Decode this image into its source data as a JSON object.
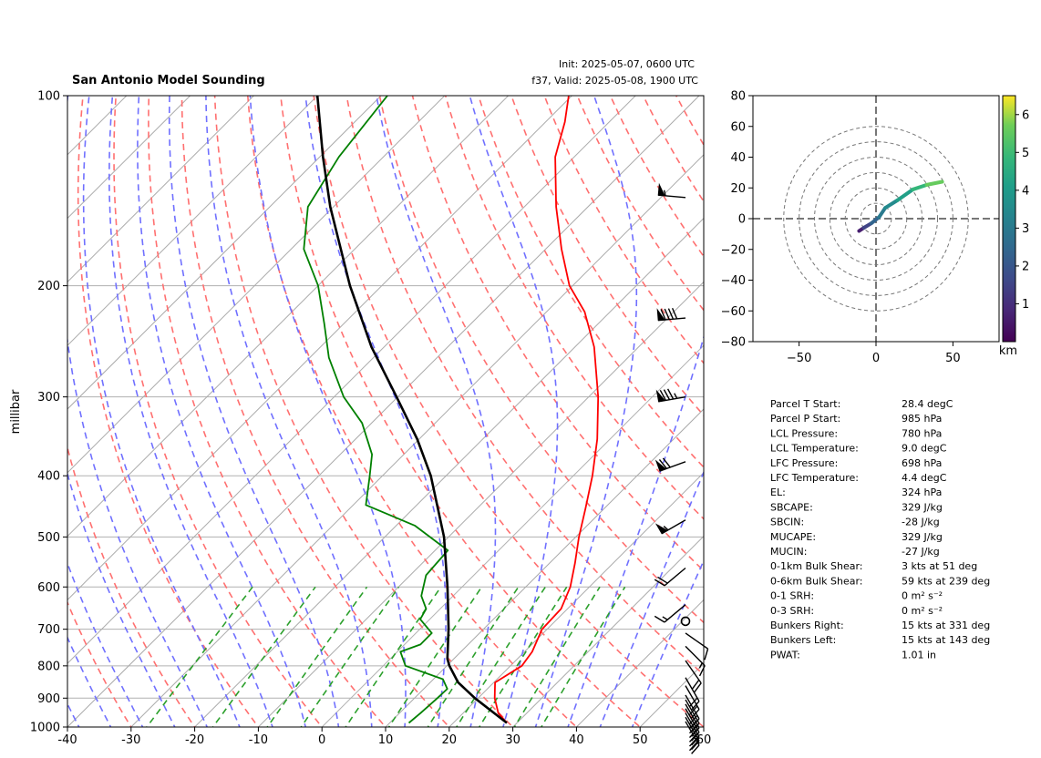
{
  "header": {
    "title": "San Antonio Model Sounding",
    "init": "Init: 2025-05-07, 0600 UTC",
    "valid": "f37, Valid: 2025-05-08, 1900 UTC"
  },
  "chart_data": [
    {
      "type": "skew-t",
      "xlim": [
        -40,
        60
      ],
      "ylim": [
        1000,
        100
      ],
      "ylabel": "millibar",
      "x_ticks": [
        "-40",
        "-30",
        "-20",
        "-10",
        "0",
        "10",
        "20",
        "30",
        "40",
        "50",
        "60"
      ],
      "y_ticks": [
        "1000",
        "900",
        "800",
        "700",
        "600",
        "500",
        "400",
        "300",
        "200",
        "100"
      ],
      "log_scale_y": true,
      "grid": true,
      "colors": {
        "temperature": "#ff0000",
        "dewpoint": "#008000",
        "parcel": "#000000",
        "dry_adiabats": "#ff7070",
        "moist_adiabats": "#7070ff",
        "mixing_ratio": "#2ca02c",
        "isotherm_0c": "#8844cc",
        "isotherms": "#aaaaaa"
      },
      "temperature": [
        {
          "p": 985,
          "t": 28.4
        },
        {
          "p": 950,
          "t": 25.5
        },
        {
          "p": 900,
          "t": 22.6
        },
        {
          "p": 850,
          "t": 20.2
        },
        {
          "p": 800,
          "t": 21.8
        },
        {
          "p": 760,
          "t": 21.2
        },
        {
          "p": 700,
          "t": 19.2
        },
        {
          "p": 650,
          "t": 19.0
        },
        {
          "p": 600,
          "t": 17.0
        },
        {
          "p": 550,
          "t": 14.0
        },
        {
          "p": 500,
          "t": 10.5
        },
        {
          "p": 450,
          "t": 7.0
        },
        {
          "p": 400,
          "t": 3.0
        },
        {
          "p": 350,
          "t": -2.0
        },
        {
          "p": 300,
          "t": -8.5
        },
        {
          "p": 250,
          "t": -17.0
        },
        {
          "p": 220,
          "t": -24.0
        },
        {
          "p": 200,
          "t": -30.5
        },
        {
          "p": 175,
          "t": -37.5
        },
        {
          "p": 150,
          "t": -45.0
        },
        {
          "p": 125,
          "t": -53.0
        },
        {
          "p": 110,
          "t": -57.0
        },
        {
          "p": 100,
          "t": -60.5
        }
      ],
      "dewpoint": [
        {
          "p": 985,
          "t": 13.0
        },
        {
          "p": 950,
          "t": 13.3
        },
        {
          "p": 900,
          "t": 13.6
        },
        {
          "p": 870,
          "t": 13.7
        },
        {
          "p": 840,
          "t": 11.5
        },
        {
          "p": 800,
          "t": 3.5
        },
        {
          "p": 760,
          "t": 0.5
        },
        {
          "p": 740,
          "t": 2.5
        },
        {
          "p": 710,
          "t": 2.5
        },
        {
          "p": 675,
          "t": -1.5
        },
        {
          "p": 650,
          "t": -2.2
        },
        {
          "p": 620,
          "t": -5.0
        },
        {
          "p": 575,
          "t": -7.5
        },
        {
          "p": 525,
          "t": -8.0
        },
        {
          "p": 480,
          "t": -17.0
        },
        {
          "p": 445,
          "t": -28.0
        },
        {
          "p": 400,
          "t": -32.0
        },
        {
          "p": 370,
          "t": -35.0
        },
        {
          "p": 330,
          "t": -41.5
        },
        {
          "p": 300,
          "t": -48.5
        },
        {
          "p": 260,
          "t": -57.0
        },
        {
          "p": 230,
          "t": -63.0
        },
        {
          "p": 200,
          "t": -70.0
        },
        {
          "p": 175,
          "t": -78.0
        },
        {
          "p": 150,
          "t": -84.0
        },
        {
          "p": 125,
          "t": -87.0
        },
        {
          "p": 100,
          "t": -89.0
        }
      ],
      "parcel": [
        {
          "p": 985,
          "t": 28.4
        },
        {
          "p": 900,
          "t": 19.5
        },
        {
          "p": 850,
          "t": 14.4
        },
        {
          "p": 800,
          "t": 10.4
        },
        {
          "p": 780,
          "t": 9.0
        },
        {
          "p": 698,
          "t": 4.4
        },
        {
          "p": 600,
          "t": -2.3
        },
        {
          "p": 500,
          "t": -10.7
        },
        {
          "p": 400,
          "t": -22.4
        },
        {
          "p": 350,
          "t": -30.3
        },
        {
          "p": 300,
          "t": -40.2
        },
        {
          "p": 250,
          "t": -52.0
        },
        {
          "p": 200,
          "t": -65.0
        },
        {
          "p": 150,
          "t": -80.5
        },
        {
          "p": 125,
          "t": -89.5
        },
        {
          "p": 100,
          "t": -100.0
        }
      ],
      "wind_barbs": [
        {
          "p": 980,
          "spd": 22,
          "dir": 150
        },
        {
          "p": 965,
          "spd": 22,
          "dir": 150
        },
        {
          "p": 950,
          "spd": 22,
          "dir": 150
        },
        {
          "p": 935,
          "spd": 22,
          "dir": 150
        },
        {
          "p": 920,
          "spd": 22,
          "dir": 150
        },
        {
          "p": 905,
          "spd": 22,
          "dir": 150
        },
        {
          "p": 890,
          "spd": 22,
          "dir": 150
        },
        {
          "p": 860,
          "spd": 22,
          "dir": 150
        },
        {
          "p": 835,
          "spd": 20,
          "dir": 150
        },
        {
          "p": 785,
          "spd": 18,
          "dir": 145
        },
        {
          "p": 745,
          "spd": 15,
          "dir": 135
        },
        {
          "p": 710,
          "spd": 12,
          "dir": 125
        },
        {
          "p": 680,
          "spd": 0,
          "dir": 0
        },
        {
          "p": 640,
          "spd": 15,
          "dir": 230
        },
        {
          "p": 560,
          "spd": 18,
          "dir": 230
        },
        {
          "p": 470,
          "spd": 55,
          "dir": 240
        },
        {
          "p": 380,
          "spd": 70,
          "dir": 250
        },
        {
          "p": 300,
          "spd": 85,
          "dir": 260
        },
        {
          "p": 225,
          "spd": 90,
          "dir": 265
        },
        {
          "p": 145,
          "spd": 55,
          "dir": 275
        }
      ]
    },
    {
      "type": "hodograph",
      "xlim": [
        -80,
        80
      ],
      "ylim": [
        -80,
        80
      ],
      "x_ticks": [
        "−50",
        "0",
        "50"
      ],
      "y_ticks": [
        "80",
        "60",
        "40",
        "20",
        "0",
        "−20",
        "−40",
        "−60",
        "−80"
      ],
      "rings": [
        10,
        20,
        30,
        40,
        50,
        60
      ],
      "colorbar_label": "km",
      "colorbar_ticks": [
        "1",
        "2",
        "3",
        "4",
        "5",
        "6"
      ],
      "colorbar_range": [
        0,
        6.5
      ],
      "points": [
        {
          "u": -11,
          "v": -8,
          "h": 0.3
        },
        {
          "u": -8,
          "v": -6,
          "h": 1.0
        },
        {
          "u": -3,
          "v": -3,
          "h": 2.0
        },
        {
          "u": 2,
          "v": 1,
          "h": 2.8
        },
        {
          "u": 6,
          "v": 7,
          "h": 3.2
        },
        {
          "u": 14,
          "v": 12,
          "h": 3.8
        },
        {
          "u": 24,
          "v": 19,
          "h": 4.5
        },
        {
          "u": 33,
          "v": 22,
          "h": 5.2
        },
        {
          "u": 43,
          "v": 24,
          "h": 6.0
        }
      ]
    }
  ],
  "params": [
    {
      "label": "Parcel T Start:",
      "value": "28.4 degC"
    },
    {
      "label": "Parcel P Start:",
      "value": "985 hPa"
    },
    {
      "label": "LCL Pressure:",
      "value": "780 hPa"
    },
    {
      "label": "LCL Temperature:",
      "value": "9.0 degC"
    },
    {
      "label": "LFC Pressure:",
      "value": "698 hPa"
    },
    {
      "label": "LFC Temperature:",
      "value": "4.4 degC"
    },
    {
      "label": "EL:",
      "value": "324 hPa"
    },
    {
      "label": "SBCAPE:",
      "value": "329 J/kg"
    },
    {
      "label": "SBCIN:",
      "value": "-28 J/kg"
    },
    {
      "label": "MUCAPE:",
      "value": "329 J/kg"
    },
    {
      "label": "MUCIN:",
      "value": "-27 J/kg"
    },
    {
      "label": "0-1km Bulk Shear:",
      "value": "3 kts at 51 deg"
    },
    {
      "label": "0-6km Bulk Shear:",
      "value": "59 kts at 239 deg"
    },
    {
      "label": "0-1 SRH:",
      "value": "0 m² s⁻²"
    },
    {
      "label": "0-3 SRH:",
      "value": "0 m² s⁻²"
    },
    {
      "label": "Bunkers Right:",
      "value": "15 kts at 331 deg"
    },
    {
      "label": "Bunkers Left:",
      "value": "15 kts at 143 deg"
    },
    {
      "label": "PWAT:",
      "value": "1.01 in"
    }
  ]
}
